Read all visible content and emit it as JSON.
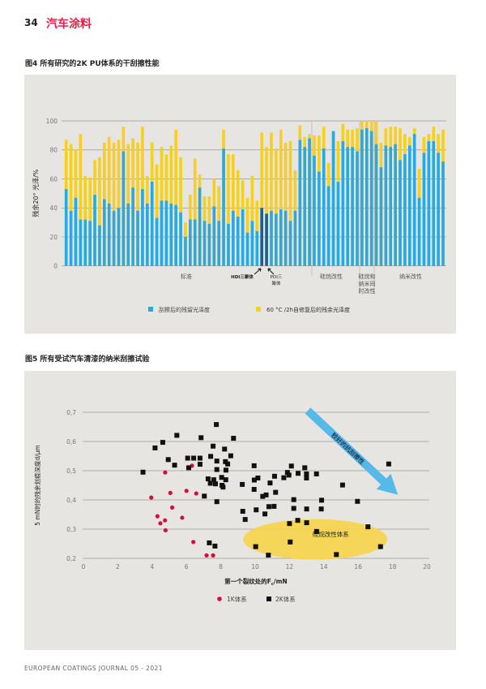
{
  "header": {
    "page_number": "34",
    "section": "汽车涂料"
  },
  "footer": {
    "journal": "EUROPEAN COATINGS JOURNAL 05 - 2021"
  },
  "colors": {
    "accent_red": "#e0224a",
    "blue": "#29a9e0",
    "yellow": "#f7cf1e",
    "dark_blue": "#1d5f8c",
    "panel_bg": "#e7e5e2",
    "ellipse": "#f7d44a"
  },
  "chart_data": [
    {
      "type": "bar",
      "title": "图4 所有研究的2K PU体系的干刮擦性能",
      "ylabel": "残余20° 光泽/%",
      "ylim": [
        0,
        100
      ],
      "yticks": [
        "0",
        "20",
        "40",
        "60",
        "80",
        "100"
      ],
      "grid": true,
      "stacked_overlay": true,
      "series": [
        {
          "name": "刮擦后的残留光泽度",
          "color": "#29a9e0",
          "values": [
            53,
            38,
            47,
            32,
            32,
            31,
            49,
            28,
            46,
            43,
            38,
            40,
            79,
            43,
            54,
            38,
            53,
            43,
            58,
            33,
            45,
            45,
            43,
            42,
            37,
            20,
            32,
            32,
            54,
            31,
            29,
            41,
            31,
            81,
            29,
            38,
            34,
            39,
            23,
            31,
            24,
            40,
            36,
            38,
            36,
            39,
            38,
            31,
            38,
            87,
            82,
            88,
            76,
            65,
            81,
            55,
            93,
            58,
            86,
            82,
            82,
            79,
            94,
            95,
            93,
            84,
            68,
            83,
            82,
            84,
            73,
            77,
            83,
            91,
            47,
            78,
            86,
            86,
            78,
            72
          ]
        },
        {
          "name": "60 °C /2h自修复后的残余光泽度",
          "color": "#f7cf1e",
          "values": [
            87,
            84,
            80,
            91,
            62,
            61,
            73,
            75,
            85,
            89,
            85,
            87,
            96,
            84,
            88,
            85,
            96,
            62,
            85,
            70,
            82,
            77,
            83,
            94,
            75,
            30,
            49,
            74,
            63,
            48,
            48,
            60,
            55,
            94,
            77,
            77,
            66,
            59,
            47,
            62,
            45,
            92,
            82,
            92,
            81,
            94,
            85,
            86,
            66,
            97,
            89,
            91,
            90,
            90,
            96,
            71,
            93,
            86,
            98,
            94,
            94,
            95,
            100,
            100,
            100,
            100,
            85,
            95,
            96,
            96,
            95,
            91,
            89,
            95,
            67,
            89,
            91,
            96,
            91,
            94
          ]
        }
      ],
      "highlighted_bars": [
        {
          "index": 41,
          "label": "HDI三聚体"
        },
        {
          "index": 42,
          "label": "PDI三聚体"
        }
      ],
      "groups": [
        {
          "label": "标准",
          "start": 0,
          "end": 51
        },
        {
          "label": "硅烷改性",
          "start": 52,
          "end": 61
        },
        {
          "label": "硅烷和纳米同时改性",
          "start": 62,
          "end": 64
        },
        {
          "label": "纳米改性",
          "start": 65,
          "end": 79
        }
      ],
      "labels": {
        "standard": "标准",
        "hdi": "HDI三聚体",
        "pdi_1": "PDI三",
        "pdi_2": "聚体",
        "silane": "硅烷改性",
        "both_1": "硅烷和",
        "both_2": "纳米同",
        "both_3": "时改性",
        "nano": "纳米改性"
      },
      "legend": {
        "placement": "bottom",
        "blue": "刮擦后的残留光泽度",
        "yellow": "60 °C /2h自修复后的残余光泽度"
      }
    },
    {
      "type": "scatter",
      "title": "图5 所有受试汽车清漆的纳米刮擦试验",
      "xlabel_prefix": "第一个裂纹处的F",
      "xlabel_sub": "c",
      "xlabel_suffix": "/mN",
      "ylabel": "5 mN时的残余划痕深度d/μm",
      "xlim": [
        0,
        20
      ],
      "ylim": [
        0.2,
        0.7
      ],
      "xticks": [
        "0",
        "2",
        "4",
        "6",
        "8",
        "10",
        "12",
        "14",
        "16",
        "18",
        "20"
      ],
      "yticks": [
        "0,2",
        "0,3",
        "0,4",
        "0,5",
        "0,6",
        "0,7"
      ],
      "grid": true,
      "annotations": {
        "arrow": "较好的抗刮擦性",
        "ellipse": "硅烷改性体系"
      },
      "legend": {
        "placement": "bottom",
        "k1": "1K体系",
        "k2": "2K体系"
      },
      "series": [
        {
          "name": "1K体系",
          "marker": "circle",
          "color": "#d0103a",
          "points": [
            [
              4.76,
              0.494
            ],
            [
              6.32,
              0.517
            ],
            [
              3.95,
              0.408
            ],
            [
              5.06,
              0.424
            ],
            [
              6.0,
              0.431
            ],
            [
              6.57,
              0.422
            ],
            [
              5.17,
              0.374
            ],
            [
              4.31,
              0.344
            ],
            [
              5.75,
              0.339
            ],
            [
              4.75,
              0.33
            ],
            [
              4.48,
              0.32
            ],
            [
              4.78,
              0.296
            ],
            [
              6.4,
              0.256
            ],
            [
              7.17,
              0.21
            ],
            [
              7.55,
              0.21
            ]
          ]
        },
        {
          "name": "2K体系",
          "marker": "square",
          "color": "#111111",
          "points": [
            [
              3.47,
              0.495
            ],
            [
              4.17,
              0.578
            ],
            [
              4.62,
              0.597
            ],
            [
              5.44,
              0.621
            ],
            [
              4.94,
              0.538
            ],
            [
              5.31,
              0.519
            ],
            [
              6.07,
              0.543
            ],
            [
              6.42,
              0.543
            ],
            [
              6.13,
              0.51
            ],
            [
              6.85,
              0.613
            ],
            [
              6.79,
              0.543
            ],
            [
              6.79,
              0.522
            ],
            [
              7.74,
              0.658
            ],
            [
              7.55,
              0.584
            ],
            [
              7.41,
              0.549
            ],
            [
              7.77,
              0.533
            ],
            [
              8.22,
              0.574
            ],
            [
              8.58,
              0.551
            ],
            [
              8.74,
              0.611
            ],
            [
              8.27,
              0.531
            ],
            [
              8.4,
              0.523
            ],
            [
              7.77,
              0.504
            ],
            [
              8.3,
              0.502
            ],
            [
              7.26,
              0.472
            ],
            [
              7.59,
              0.469
            ],
            [
              7.39,
              0.457
            ],
            [
              7.69,
              0.455
            ],
            [
              8.05,
              0.477
            ],
            [
              8.29,
              0.469
            ],
            [
              8.07,
              0.45
            ],
            [
              8.13,
              0.444
            ],
            [
              9.25,
              0.453
            ],
            [
              7.04,
              0.413
            ],
            [
              7.77,
              0.394
            ],
            [
              9.28,
              0.361
            ],
            [
              9.42,
              0.333
            ],
            [
              7.33,
              0.253
            ],
            [
              7.66,
              0.242
            ],
            [
              9.94,
              0.517
            ],
            [
              9.95,
              0.468
            ],
            [
              10.16,
              0.475
            ],
            [
              9.94,
              0.436
            ],
            [
              11.13,
              0.481
            ],
            [
              10.87,
              0.458
            ],
            [
              11.19,
              0.426
            ],
            [
              10.44,
              0.412
            ],
            [
              10.64,
              0.417
            ],
            [
              10.06,
              0.366
            ],
            [
              10.57,
              0.352
            ],
            [
              10.8,
              0.377
            ],
            [
              11.1,
              0.378
            ],
            [
              11.67,
              0.476
            ],
            [
              11.88,
              0.494
            ],
            [
              11.97,
              0.485
            ],
            [
              12.11,
              0.516
            ],
            [
              12.5,
              0.491
            ],
            [
              12.89,
              0.51
            ],
            [
              12.99,
              0.489
            ],
            [
              12.99,
              0.475
            ],
            [
              13.57,
              0.489
            ],
            [
              15.09,
              0.451
            ],
            [
              17.78,
              0.523
            ],
            [
              12.25,
              0.401
            ],
            [
              12.25,
              0.371
            ],
            [
              13.0,
              0.369
            ],
            [
              13.85,
              0.369
            ],
            [
              13.87,
              0.399
            ],
            [
              15.96,
              0.395
            ],
            [
              12.0,
              0.319
            ],
            [
              12.48,
              0.33
            ],
            [
              13.0,
              0.322
            ],
            [
              13.58,
              0.292
            ],
            [
              16.57,
              0.308
            ],
            [
              10.03,
              0.24
            ],
            [
              12.04,
              0.256
            ],
            [
              17.3,
              0.24
            ],
            [
              10.77,
              0.211
            ],
            [
              14.73,
              0.213
            ]
          ]
        }
      ]
    }
  ]
}
